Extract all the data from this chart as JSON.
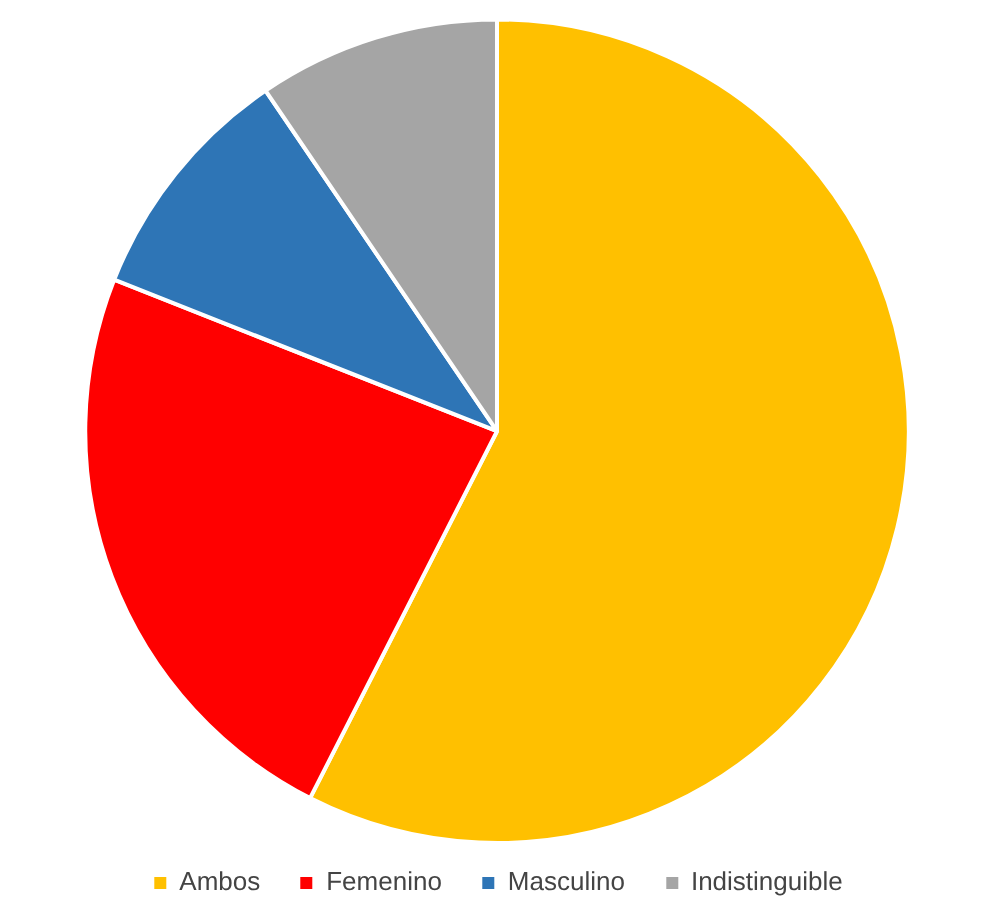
{
  "chart_data": {
    "type": "pie",
    "categories": [
      "Ambos",
      "Femenino",
      "Masculino",
      "Indistinguible"
    ],
    "values": [
      57.5,
      23.5,
      9.5,
      9.5
    ],
    "colors": [
      "#ffc000",
      "#ff0000",
      "#2e75b6",
      "#a5a5a5"
    ],
    "legend": "bottom"
  }
}
